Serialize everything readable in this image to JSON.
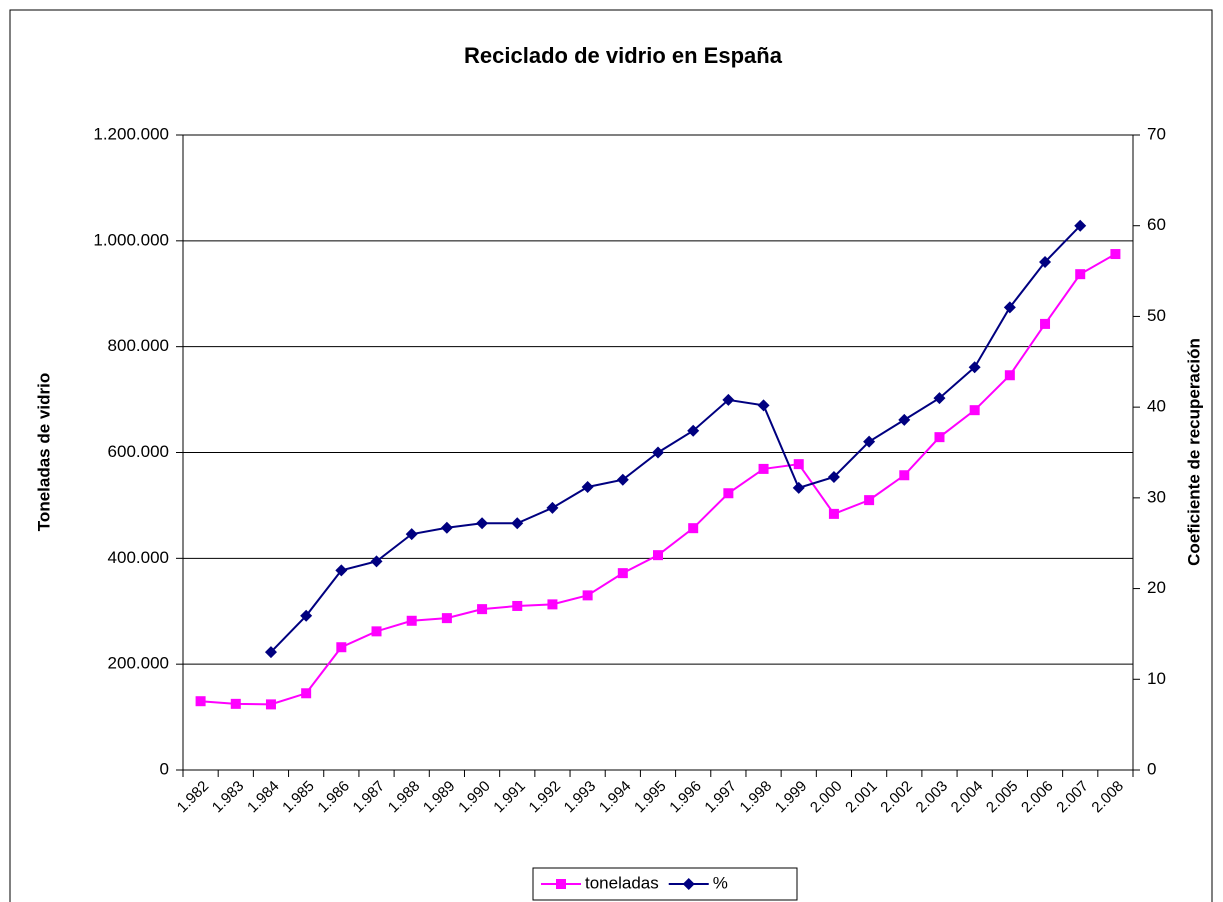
{
  "chart_data": {
    "type": "line",
    "title": "Reciclado de vidrio en España",
    "y_label": "Toneladas de vidrio",
    "y2_label": "Coeficiente de recuperación",
    "categories": [
      "1.982",
      "1.983",
      "1.984",
      "1.985",
      "1.986",
      "1.987",
      "1.988",
      "1.989",
      "1.990",
      "1.991",
      "1.992",
      "1.993",
      "1.994",
      "1.995",
      "1.996",
      "1.997",
      "1.998",
      "1.999",
      "2.000",
      "2.001",
      "2.002",
      "2.003",
      "2.004",
      "2.005",
      "2.006",
      "2.007",
      "2.008"
    ],
    "series": [
      {
        "name": "toneladas",
        "color": "#ff00ff",
        "marker": "square",
        "values": [
          130000,
          125000,
          124000,
          145000,
          232000,
          262000,
          282000,
          287000,
          304000,
          310000,
          313000,
          330000,
          372000,
          406000,
          457000,
          523000,
          569000,
          578000,
          484000,
          510000,
          557000,
          629000,
          680000,
          746000,
          843000,
          937000,
          975000
        ]
      },
      {
        "name": "%",
        "color": "#000080",
        "marker": "diamond",
        "axis": "y2",
        "values": [
          null,
          null,
          13,
          17,
          22,
          23,
          26,
          26.7,
          27.2,
          27.2,
          28.9,
          31.2,
          32,
          35,
          37.4,
          40.8,
          40.2,
          31.1,
          32.3,
          36.2,
          38.6,
          41,
          44.4,
          51,
          56,
          60,
          null
        ]
      }
    ],
    "ylim": [
      0,
      1200000
    ],
    "yticks": [
      0,
      {
        "value": 200000,
        "label": "200.000"
      },
      {
        "value": 400000,
        "label": "400.000"
      },
      {
        "value": 600000,
        "label": "600.000"
      },
      {
        "value": 800000,
        "label": "800.000"
      },
      {
        "value": 1000000,
        "label": "1.000.000"
      },
      {
        "value": 1200000,
        "label": "1.200.000"
      }
    ],
    "y2lim": [
      0,
      70
    ],
    "y2ticks": [
      0,
      10,
      20,
      30,
      40,
      50,
      60,
      70
    ],
    "grid": true,
    "legend": "bottom"
  }
}
